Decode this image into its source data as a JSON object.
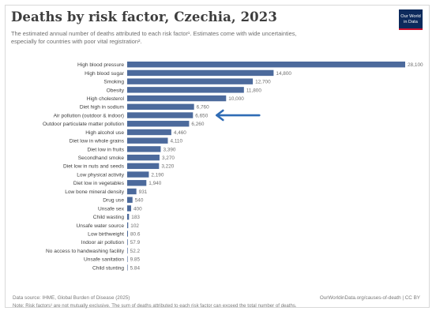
{
  "header": {
    "title": "Deaths by risk factor, Czechia, 2023",
    "subtitle_line1": "The estimated annual number of deaths attributed to each risk factor¹. Estimates come with wide uncertainties,",
    "subtitle_line2": "especially for countries with poor vital registration².",
    "logo_line1": "Our World",
    "logo_line2": "in Data"
  },
  "chart_data": {
    "type": "bar",
    "orientation": "horizontal",
    "title": "Deaths by risk factor, Czechia, 2023",
    "categories": [
      "High blood pressure",
      "High blood sugar",
      "Smoking",
      "Obesity",
      "High cholesterol",
      "Diet high in sodium",
      "Air pollution (outdoor & indoor)",
      "Outdoor particulate matter pollution",
      "High alcohol use",
      "Diet low in whole grains",
      "Diet low in fruits",
      "Secondhand smoke",
      "Diet low in nuts and seeds",
      "Low physical activity",
      "Diet low in vegetables",
      "Low bone mineral density",
      "Drug use",
      "Unsafe sex",
      "Child wasting",
      "Unsafe water source",
      "Low birthweight",
      "Indoor air pollution",
      "No access to handwashing facility",
      "Unsafe sanitation",
      "Child stunting"
    ],
    "values": [
      28100,
      14800,
      12700,
      11800,
      10000,
      6760,
      6650,
      6260,
      4460,
      4110,
      3390,
      3270,
      3220,
      2190,
      1940,
      931,
      540,
      400,
      183,
      102,
      80.6,
      57.9,
      52.2,
      9.85,
      5.84
    ],
    "value_labels": [
      "28,100",
      "14,800",
      "12,700",
      "11,800",
      "10,000",
      "6,760",
      "6,650",
      "6,260",
      "4,460",
      "4,110",
      "3,390",
      "3,270",
      "3,220",
      "2,190",
      "1,940",
      "931",
      "540",
      "400",
      "183",
      "102",
      "80.6",
      "57.9",
      "52.2",
      "9.85",
      "5.84"
    ],
    "xlim": [
      0,
      28100
    ],
    "bar_color": "#4c6a9c",
    "annotation": {
      "type": "arrow",
      "color": "#2f6cb5",
      "points_to": "Air pollution (outdoor & indoor)"
    }
  },
  "footer": {
    "source": "Data source: IHME, Global Burden of Disease (2025)",
    "url": "OurWorldinData.org/causes-of-death | CC BY",
    "note": "Note: Risk factors¹ are not mutually exclusive. The sum of deaths attributed to each risk factor can exceed the total number of deaths."
  }
}
